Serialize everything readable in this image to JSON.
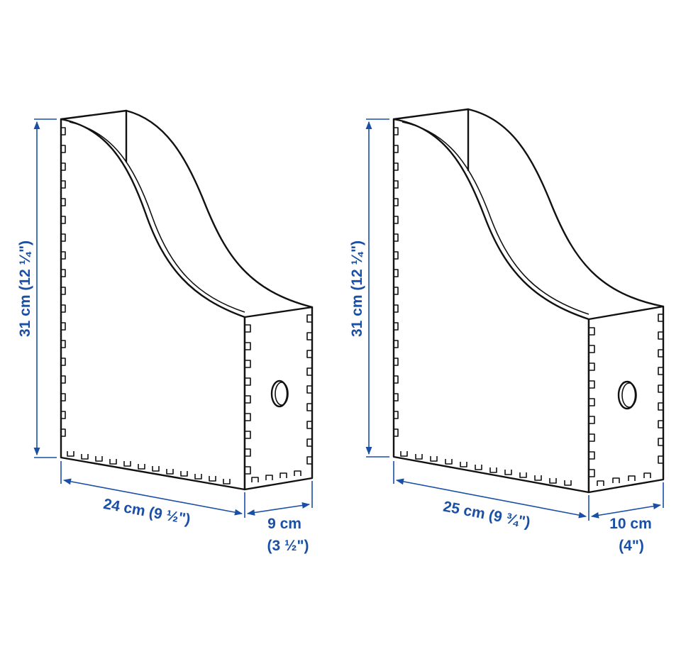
{
  "colors": {
    "dimension": "#1a4fa6",
    "outline": "#111111",
    "background": "#ffffff"
  },
  "products": [
    {
      "height_label": "31 cm (12 ¼\")",
      "length_label": "24 cm (9 ½\")",
      "depth_label_line1": "9 cm",
      "depth_label_line2": "(3 ½\")"
    },
    {
      "height_label": "31 cm (12 ¼\")",
      "length_label": "25 cm (9 ¾\")",
      "depth_label_line1": "10 cm",
      "depth_label_line2": "(4\")"
    }
  ]
}
